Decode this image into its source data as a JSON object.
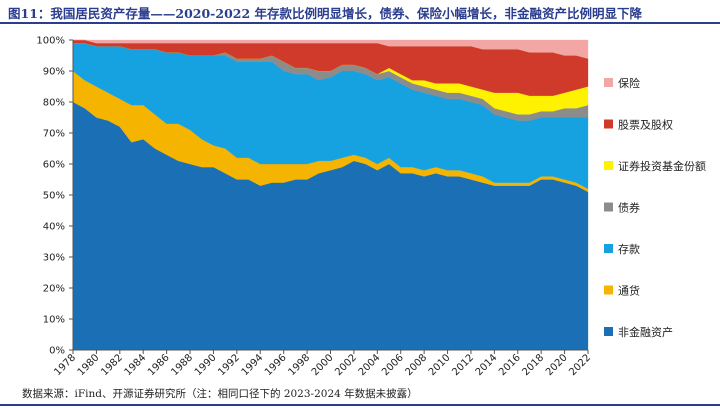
{
  "title": "图11：我国居民资产存量——2020-2022 年存款比例明显增长，债券、保险小幅增长，非金融资产比例明显下降",
  "source": "数据来源：iFind、开源证券研究所（注：相同口径下的 2023-2024 年数据未披露）",
  "chart_data": {
    "type": "area",
    "stacked": true,
    "x": [
      1978,
      1979,
      1980,
      1981,
      1982,
      1983,
      1984,
      1985,
      1986,
      1987,
      1988,
      1989,
      1990,
      1991,
      1992,
      1993,
      1994,
      1995,
      1996,
      1997,
      1998,
      1999,
      2000,
      2001,
      2002,
      2003,
      2004,
      2005,
      2006,
      2007,
      2008,
      2009,
      2010,
      2011,
      2012,
      2013,
      2014,
      2015,
      2016,
      2017,
      2018,
      2019,
      2020,
      2021,
      2022
    ],
    "x_tick_labels": [
      "1978",
      "1980",
      "1982",
      "1984",
      "1986",
      "1988",
      "1990",
      "1992",
      "1994",
      "1996",
      "1998",
      "2000",
      "2002",
      "2004",
      "2006",
      "2008",
      "2010",
      "2012",
      "2014",
      "2016",
      "2018",
      "2020",
      "2022"
    ],
    "y_tick_labels": [
      "0%",
      "10%",
      "20%",
      "30%",
      "40%",
      "50%",
      "60%",
      "70%",
      "80%",
      "90%",
      "100%"
    ],
    "ylim": [
      0,
      100
    ],
    "y_unit": "%",
    "legend_position": "right",
    "series": [
      {
        "name": "非金融资产",
        "color": "#1a6fb5",
        "values": [
          80,
          78,
          75,
          74,
          72,
          67,
          68,
          65,
          63,
          61,
          60,
          59,
          59,
          57,
          55,
          55,
          53,
          54,
          54,
          55,
          55,
          57,
          58,
          59,
          61,
          60,
          58,
          60,
          57,
          57,
          56,
          57,
          56,
          56,
          55,
          54,
          53,
          53,
          53,
          53,
          55,
          55,
          54,
          53,
          51
        ]
      },
      {
        "name": "通货",
        "color": "#f5b400",
        "values": [
          10,
          9,
          10,
          9,
          9,
          12,
          11,
          11,
          10,
          12,
          11,
          9,
          7,
          8,
          7,
          7,
          7,
          6,
          6,
          5,
          5,
          4,
          3,
          3,
          2,
          2,
          2,
          2,
          2,
          2,
          2,
          2,
          2,
          2,
          2,
          2,
          1,
          1,
          1,
          1,
          1,
          1,
          1,
          1,
          1
        ]
      },
      {
        "name": "存款",
        "color": "#16a2e0",
        "values": [
          9,
          12,
          13,
          15,
          17,
          18,
          18,
          21,
          23,
          23,
          24,
          27,
          29,
          30,
          31,
          31,
          33,
          33,
          30,
          29,
          29,
          26,
          27,
          28,
          27,
          27,
          27,
          26,
          27,
          25,
          25,
          23,
          23,
          23,
          23,
          23,
          22,
          21,
          20,
          20,
          19,
          19,
          20,
          21,
          23
        ]
      },
      {
        "name": "债券",
        "color": "#8c8c8c",
        "values": [
          0,
          0,
          0,
          0,
          0,
          0,
          0,
          0,
          0,
          0,
          0,
          0,
          0,
          1,
          1,
          1,
          1,
          2,
          3,
          2,
          2,
          3,
          2,
          2,
          2,
          2,
          2,
          2,
          2,
          2,
          2,
          2,
          2,
          2,
          2,
          2,
          2,
          2,
          2,
          2,
          2,
          2,
          3,
          3,
          4
        ]
      },
      {
        "name": "证券投资基金份额",
        "color": "#fff200",
        "values": [
          0,
          0,
          0,
          0,
          0,
          0,
          0,
          0,
          0,
          0,
          0,
          0,
          0,
          0,
          0,
          0,
          0,
          0,
          0,
          0,
          0,
          0,
          0,
          0,
          0,
          0,
          0,
          1,
          1,
          1,
          2,
          2,
          3,
          3,
          3,
          3,
          5,
          6,
          7,
          6,
          5,
          5,
          5,
          6,
          6
        ]
      },
      {
        "name": "股票及股权",
        "color": "#cf3a2a",
        "values": [
          1,
          1,
          1,
          1,
          1,
          2,
          2,
          2,
          3,
          3,
          4,
          4,
          4,
          3,
          5,
          5,
          5,
          4,
          6,
          8,
          8,
          9,
          9,
          7,
          7,
          8,
          10,
          7,
          9,
          11,
          11,
          12,
          12,
          12,
          13,
          13,
          14,
          14,
          14,
          14,
          14,
          14,
          12,
          11,
          9
        ]
      },
      {
        "name": "保险",
        "color": "#f2a7a5",
        "values": [
          0,
          0,
          1,
          1,
          1,
          1,
          1,
          1,
          1,
          1,
          1,
          1,
          1,
          1,
          1,
          1,
          1,
          1,
          1,
          1,
          1,
          1,
          1,
          1,
          1,
          1,
          1,
          2,
          2,
          2,
          2,
          2,
          2,
          2,
          2,
          3,
          3,
          3,
          3,
          4,
          4,
          4,
          5,
          5,
          6
        ]
      }
    ]
  }
}
